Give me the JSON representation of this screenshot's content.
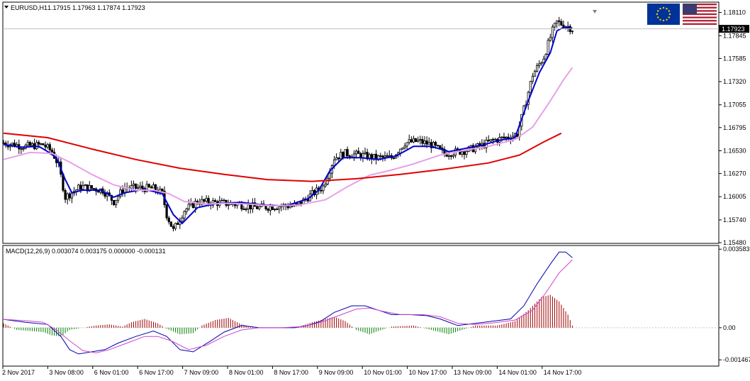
{
  "header": {
    "symbol_label": "EURUSD,H1",
    "ohlc": "1.17915 1.17963 1.17874 1.17923"
  },
  "current_price_label": "1.17923",
  "flags": [
    "eu-flag-icon",
    "us-flag-icon"
  ],
  "colors": {
    "candles": "#000000",
    "ma_fast": "#0000cc",
    "ma_mid": "#e8a0e8",
    "ma_slow": "#e00000",
    "macd_hist_pos": "#a00000",
    "macd_hist_neg": "#008000",
    "macd_main": "#0000aa",
    "macd_signal": "#cc44cc"
  },
  "chart_data": [
    {
      "type": "candlestick",
      "name": "EURUSD H1 price",
      "ylim": [
        1.1548,
        1.1822
      ],
      "y_ticks": [
        "1.18110",
        "1.17923",
        "1.17845",
        "1.17585",
        "1.17320",
        "1.17055",
        "1.16795",
        "1.16530",
        "1.16270",
        "1.16005",
        "1.15740",
        "1.15480"
      ],
      "x_ticks": [
        "2 Nov 2017",
        "3 Nov 08:00",
        "6 Nov 01:00",
        "6 Nov 17:00",
        "7 Nov 09:00",
        "8 Nov 01:00",
        "8 Nov 17:00",
        "9 Nov 09:00",
        "10 Nov 01:00",
        "10 Nov 17:00",
        "13 Nov 09:00",
        "14 Nov 01:00",
        "14 Nov 17:00"
      ],
      "close_anchors": [
        [
          0,
          1.1662
        ],
        [
          10,
          1.1658
        ],
        [
          18,
          1.166
        ],
        [
          22,
          1.1652
        ],
        [
          25,
          1.1636
        ],
        [
          28,
          1.16
        ],
        [
          35,
          1.1612
        ],
        [
          45,
          1.1608
        ],
        [
          50,
          1.1595
        ],
        [
          55,
          1.1611
        ],
        [
          68,
          1.161
        ],
        [
          72,
          1.1604
        ],
        [
          74,
          1.158
        ],
        [
          77,
          1.1562
        ],
        [
          82,
          1.1585
        ],
        [
          88,
          1.1595
        ],
        [
          95,
          1.1594
        ],
        [
          105,
          1.1592
        ],
        [
          116,
          1.1588
        ],
        [
          125,
          1.159
        ],
        [
          133,
          1.159
        ],
        [
          138,
          1.16
        ],
        [
          145,
          1.1612
        ],
        [
          150,
          1.1645
        ],
        [
          155,
          1.165
        ],
        [
          162,
          1.1648
        ],
        [
          168,
          1.1645
        ],
        [
          176,
          1.1645
        ],
        [
          182,
          1.1662
        ],
        [
          188,
          1.1664
        ],
        [
          194,
          1.166
        ],
        [
          200,
          1.165
        ],
        [
          206,
          1.1652
        ],
        [
          211,
          1.1654
        ],
        [
          218,
          1.166
        ],
        [
          222,
          1.1665
        ],
        [
          228,
          1.1668
        ],
        [
          233,
          1.1672
        ],
        [
          236,
          1.17
        ],
        [
          240,
          1.174
        ],
        [
          245,
          1.176
        ],
        [
          249,
          1.179
        ],
        [
          251,
          1.18
        ],
        [
          256,
          1.1795
        ],
        [
          258,
          1.1792
        ]
      ],
      "series": [
        {
          "name": "",
          "kind": "ma_fast",
          "points": [
            [
              0,
              1.166
            ],
            [
              8,
              1.1657
            ],
            [
              16,
              1.1658
            ],
            [
              20,
              1.1652
            ],
            [
              24,
              1.1645
            ],
            [
              28,
              1.162
            ],
            [
              31,
              1.1605
            ],
            [
              36,
              1.1608
            ],
            [
              44,
              1.1608
            ],
            [
              50,
              1.16
            ],
            [
              55,
              1.1605
            ],
            [
              64,
              1.1609
            ],
            [
              72,
              1.1604
            ],
            [
              77,
              1.158
            ],
            [
              81,
              1.157
            ],
            [
              88,
              1.1588
            ],
            [
              97,
              1.1593
            ],
            [
              108,
              1.1594
            ],
            [
              118,
              1.1591
            ],
            [
              128,
              1.159
            ],
            [
              138,
              1.1598
            ],
            [
              143,
              1.1608
            ],
            [
              148,
              1.163
            ],
            [
              154,
              1.1645
            ],
            [
              162,
              1.1645
            ],
            [
              170,
              1.1643
            ],
            [
              178,
              1.1647
            ],
            [
              186,
              1.1658
            ],
            [
              194,
              1.1658
            ],
            [
              202,
              1.1652
            ],
            [
              210,
              1.1656
            ],
            [
              218,
              1.166
            ],
            [
              225,
              1.1665
            ],
            [
              232,
              1.1668
            ],
            [
              238,
              1.171
            ],
            [
              243,
              1.1742
            ],
            [
              248,
              1.1765
            ],
            [
              251,
              1.179
            ],
            [
              254,
              1.1794
            ],
            [
              258,
              1.1793
            ]
          ]
        },
        {
          "name": "",
          "kind": "ma_mid",
          "points": [
            [
              0,
              1.1643
            ],
            [
              12,
              1.1651
            ],
            [
              22,
              1.165
            ],
            [
              30,
              1.164
            ],
            [
              40,
              1.1626
            ],
            [
              50,
              1.1614
            ],
            [
              60,
              1.1608
            ],
            [
              68,
              1.1608
            ],
            [
              75,
              1.1604
            ],
            [
              82,
              1.1595
            ],
            [
              92,
              1.1592
            ],
            [
              102,
              1.1593
            ],
            [
              112,
              1.1592
            ],
            [
              122,
              1.159
            ],
            [
              134,
              1.1591
            ],
            [
              146,
              1.1597
            ],
            [
              156,
              1.1612
            ],
            [
              166,
              1.1625
            ],
            [
              176,
              1.1631
            ],
            [
              186,
              1.1638
            ],
            [
              198,
              1.1648
            ],
            [
              210,
              1.1654
            ],
            [
              220,
              1.1658
            ],
            [
              232,
              1.1666
            ],
            [
              240,
              1.168
            ],
            [
              248,
              1.171
            ],
            [
              254,
              1.1734
            ],
            [
              258,
              1.1748
            ]
          ]
        },
        {
          "name": "",
          "kind": "ma_slow",
          "points": [
            [
              0,
              1.1673
            ],
            [
              20,
              1.1668
            ],
            [
              40,
              1.1655
            ],
            [
              60,
              1.1643
            ],
            [
              80,
              1.1633
            ],
            [
              100,
              1.1626
            ],
            [
              120,
              1.162
            ],
            [
              140,
              1.1618
            ],
            [
              160,
              1.1621
            ],
            [
              180,
              1.1626
            ],
            [
              200,
              1.1632
            ],
            [
              220,
              1.1639
            ],
            [
              234,
              1.1648
            ],
            [
              245,
              1.1663
            ],
            [
              253,
              1.1673
            ]
          ]
        }
      ]
    },
    {
      "type": "macd",
      "title": "MACD(12,26,9) 0.003074 0.003175 0.000000 -0.000131",
      "ylim": [
        -0.00172,
        0.00372
      ],
      "y_ticks": [
        "0.003583",
        "0.00",
        "-0.001467"
      ],
      "series": [
        {
          "name": "",
          "kind": "main",
          "points": [
            [
              0,
              0.00038
            ],
            [
              10,
              0.00025
            ],
            [
              20,
              0.00015
            ],
            [
              26,
              -0.0004
            ],
            [
              30,
              -0.001
            ],
            [
              34,
              -0.0012
            ],
            [
              40,
              -0.0011
            ],
            [
              46,
              -0.001
            ],
            [
              52,
              -0.0007
            ],
            [
              60,
              -0.0004
            ],
            [
              68,
              -0.00015
            ],
            [
              74,
              -0.0004
            ],
            [
              80,
              -0.001
            ],
            [
              86,
              -0.0011
            ],
            [
              94,
              -0.0006
            ],
            [
              100,
              -0.0002
            ],
            [
              108,
              0.0001
            ],
            [
              116,
              0.0
            ],
            [
              124,
              0.0
            ],
            [
              132,
              0.0
            ],
            [
              138,
              0.0001
            ],
            [
              144,
              0.0003
            ],
            [
              150,
              0.0007
            ],
            [
              158,
              0.001
            ],
            [
              164,
              0.001
            ],
            [
              170,
              0.0008
            ],
            [
              176,
              0.0006
            ],
            [
              184,
              0.0006
            ],
            [
              192,
              0.00055
            ],
            [
              198,
              0.0004
            ],
            [
              206,
              0.0001
            ],
            [
              214,
              0.0002
            ],
            [
              222,
              0.0003
            ],
            [
              230,
              0.0004
            ],
            [
              236,
              0.001
            ],
            [
              242,
              0.002
            ],
            [
              248,
              0.0029
            ],
            [
              252,
              0.00345
            ],
            [
              255,
              0.00345
            ],
            [
              258,
              0.0032
            ]
          ]
        },
        {
          "name": "",
          "kind": "signal",
          "points": [
            [
              0,
              0.00038
            ],
            [
              10,
              0.00032
            ],
            [
              18,
              0.00025
            ],
            [
              24,
              -0.0001
            ],
            [
              30,
              -0.0006
            ],
            [
              36,
              -0.00105
            ],
            [
              42,
              -0.00115
            ],
            [
              48,
              -0.001
            ],
            [
              56,
              -0.0007
            ],
            [
              64,
              -0.0004
            ],
            [
              70,
              -0.0004
            ],
            [
              76,
              -0.0006
            ],
            [
              84,
              -0.001
            ],
            [
              92,
              -0.0008
            ],
            [
              100,
              -0.0004
            ],
            [
              108,
              -0.0001
            ],
            [
              116,
              0.0
            ],
            [
              126,
              0.0
            ],
            [
              136,
              5e-05
            ],
            [
              144,
              0.00025
            ],
            [
              152,
              0.00055
            ],
            [
              160,
              0.00085
            ],
            [
              166,
              0.0009
            ],
            [
              172,
              0.00075
            ],
            [
              180,
              0.0006
            ],
            [
              190,
              0.0006
            ],
            [
              198,
              0.0005
            ],
            [
              206,
              0.0002
            ],
            [
              214,
              0.00015
            ],
            [
              222,
              0.00022
            ],
            [
              232,
              0.00035
            ],
            [
              240,
              0.0008
            ],
            [
              246,
              0.0016
            ],
            [
              252,
              0.0025
            ],
            [
              258,
              0.0031
            ]
          ]
        }
      ],
      "histogram_anchors": [
        [
          0,
          0.0002
        ],
        [
          3,
          5e-05
        ],
        [
          6,
          -0.0001
        ],
        [
          12,
          -0.00015
        ],
        [
          18,
          -0.0002
        ],
        [
          22,
          -0.00035
        ],
        [
          26,
          -0.0004
        ],
        [
          30,
          -0.0001
        ],
        [
          36,
          0.0
        ],
        [
          42,
          0.0001
        ],
        [
          48,
          0.00015
        ],
        [
          54,
          5e-05
        ],
        [
          58,
          0.00025
        ],
        [
          64,
          0.0004
        ],
        [
          70,
          0.0002
        ],
        [
          74,
          -5e-05
        ],
        [
          80,
          -0.0003
        ],
        [
          86,
          -0.00025
        ],
        [
          90,
          0.0001
        ],
        [
          96,
          0.00035
        ],
        [
          102,
          0.00045
        ],
        [
          108,
          0.00015
        ],
        [
          114,
          0.0
        ],
        [
          124,
          0.0
        ],
        [
          134,
          5e-05
        ],
        [
          140,
          0.00025
        ],
        [
          146,
          0.0004
        ],
        [
          150,
          0.0005
        ],
        [
          155,
          0.0003
        ],
        [
          160,
          -0.0001
        ],
        [
          166,
          -0.0003
        ],
        [
          170,
          -0.00015
        ],
        [
          176,
          5e-05
        ],
        [
          186,
          0.0001
        ],
        [
          194,
          -0.0001
        ],
        [
          202,
          -0.0003
        ],
        [
          208,
          -0.0001
        ],
        [
          214,
          0.0001
        ],
        [
          224,
          0.0001
        ],
        [
          232,
          0.0003
        ],
        [
          238,
          0.0008
        ],
        [
          244,
          0.0014
        ],
        [
          248,
          0.0015
        ],
        [
          252,
          0.0012
        ],
        [
          256,
          0.0006
        ],
        [
          258,
          0.0001
        ]
      ]
    }
  ]
}
